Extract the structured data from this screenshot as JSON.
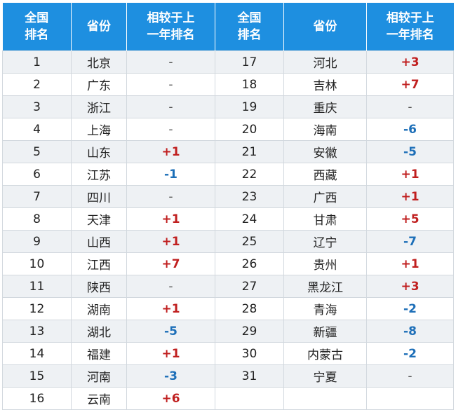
{
  "headers": {
    "rank": [
      "全国",
      "排名"
    ],
    "province": "省份",
    "change": [
      "相较于上",
      "一年排名"
    ]
  },
  "colors": {
    "header_bg": "#1e8fe0",
    "up": "#c01f1f",
    "down": "#1d6fb8"
  },
  "rows": [
    {
      "left": {
        "rank": "1",
        "province": "北京",
        "change": "-"
      },
      "right": {
        "rank": "17",
        "province": "河北",
        "change": "+3"
      }
    },
    {
      "left": {
        "rank": "2",
        "province": "广东",
        "change": "-"
      },
      "right": {
        "rank": "18",
        "province": "吉林",
        "change": "+7"
      }
    },
    {
      "left": {
        "rank": "3",
        "province": "浙江",
        "change": "-"
      },
      "right": {
        "rank": "19",
        "province": "重庆",
        "change": "-"
      }
    },
    {
      "left": {
        "rank": "4",
        "province": "上海",
        "change": "-"
      },
      "right": {
        "rank": "20",
        "province": "海南",
        "change": "-6"
      }
    },
    {
      "left": {
        "rank": "5",
        "province": "山东",
        "change": "+1"
      },
      "right": {
        "rank": "21",
        "province": "安徽",
        "change": "-5"
      }
    },
    {
      "left": {
        "rank": "6",
        "province": "江苏",
        "change": "-1"
      },
      "right": {
        "rank": "22",
        "province": "西藏",
        "change": "+1"
      }
    },
    {
      "left": {
        "rank": "7",
        "province": "四川",
        "change": "-"
      },
      "right": {
        "rank": "23",
        "province": "广西",
        "change": "+1"
      }
    },
    {
      "left": {
        "rank": "8",
        "province": "天津",
        "change": "+1"
      },
      "right": {
        "rank": "24",
        "province": "甘肃",
        "change": "+5"
      }
    },
    {
      "left": {
        "rank": "9",
        "province": "山西",
        "change": "+1"
      },
      "right": {
        "rank": "25",
        "province": "辽宁",
        "change": "-7"
      }
    },
    {
      "left": {
        "rank": "10",
        "province": "江西",
        "change": "+7"
      },
      "right": {
        "rank": "26",
        "province": "贵州",
        "change": "+1"
      }
    },
    {
      "left": {
        "rank": "11",
        "province": "陕西",
        "change": "-"
      },
      "right": {
        "rank": "27",
        "province": "黑龙江",
        "change": "+3"
      }
    },
    {
      "left": {
        "rank": "12",
        "province": "湖南",
        "change": "+1"
      },
      "right": {
        "rank": "28",
        "province": "青海",
        "change": "-2"
      }
    },
    {
      "left": {
        "rank": "13",
        "province": "湖北",
        "change": "-5"
      },
      "right": {
        "rank": "29",
        "province": "新疆",
        "change": "-8"
      }
    },
    {
      "left": {
        "rank": "14",
        "province": "福建",
        "change": "+1"
      },
      "right": {
        "rank": "30",
        "province": "内蒙古",
        "change": "-2"
      }
    },
    {
      "left": {
        "rank": "15",
        "province": "河南",
        "change": "-3"
      },
      "right": {
        "rank": "31",
        "province": "宁夏",
        "change": "-"
      }
    },
    {
      "left": {
        "rank": "16",
        "province": "云南",
        "change": "+6"
      },
      "right": {
        "rank": "",
        "province": "",
        "change": ""
      }
    }
  ]
}
